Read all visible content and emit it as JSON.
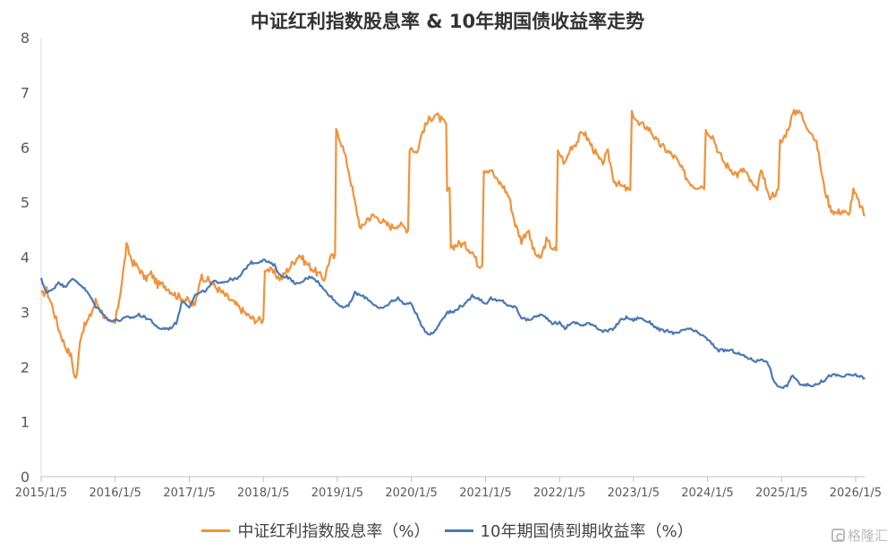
{
  "chart_data": {
    "type": "line",
    "title": "中证红利指数股息率 & 10年期国债收益率走势",
    "xlabel": "",
    "ylabel": "",
    "ylim": [
      0,
      8
    ],
    "yticks": [
      "0",
      "1",
      "2",
      "3",
      "4",
      "5",
      "6",
      "7",
      "8"
    ],
    "xticks": [
      "2015/1/5",
      "2016/1/5",
      "2017/1/5",
      "2018/1/5",
      "2019/1/5",
      "2020/1/5",
      "2021/1/5",
      "2022/1/5",
      "2023/1/5",
      "2024/1/5",
      "2025/1/5",
      "2026/1/5"
    ],
    "xrange": [
      "2015/1/5",
      "2026/2/20"
    ],
    "grid": false,
    "legend_position": "bottom",
    "series": [
      {
        "name": "中证红利指数股息率（%）",
        "color": "#F0923A",
        "points": [
          [
            "2015/1/5",
            3.3
          ],
          [
            "2015/2/1",
            3.4
          ],
          [
            "2015/3/1",
            3.1
          ],
          [
            "2015/4/1",
            2.7
          ],
          [
            "2015/5/1",
            2.4
          ],
          [
            "2015/6/1",
            2.2
          ],
          [
            "2015/6/20",
            1.8
          ],
          [
            "2015/7/1",
            1.85
          ],
          [
            "2015/7/15",
            2.5
          ],
          [
            "2015/8/1",
            2.7
          ],
          [
            "2015/9/1",
            2.9
          ],
          [
            "2015/10/1",
            3.2
          ],
          [
            "2015/11/1",
            3.0
          ],
          [
            "2015/12/1",
            2.8
          ],
          [
            "2016/1/5",
            2.8
          ],
          [
            "2016/2/1",
            3.4
          ],
          [
            "2016/2/20",
            3.9
          ],
          [
            "2016/3/1",
            4.2
          ],
          [
            "2016/4/1",
            3.9
          ],
          [
            "2016/5/1",
            3.8
          ],
          [
            "2016/6/1",
            3.6
          ],
          [
            "2016/7/1",
            3.7
          ],
          [
            "2016/8/1",
            3.5
          ],
          [
            "2016/9/1",
            3.5
          ],
          [
            "2016/10/1",
            3.4
          ],
          [
            "2016/11/1",
            3.3
          ],
          [
            "2016/12/1",
            3.25
          ],
          [
            "2017/1/1",
            3.2
          ],
          [
            "2017/2/1",
            3.1
          ],
          [
            "2017/3/1",
            3.65
          ],
          [
            "2017/4/1",
            3.6
          ],
          [
            "2017/5/1",
            3.5
          ],
          [
            "2017/6/1",
            3.4
          ],
          [
            "2017/7/1",
            3.3
          ],
          [
            "2017/8/1",
            3.2
          ],
          [
            "2017/9/1",
            3.1
          ],
          [
            "2017/10/1",
            3.0
          ],
          [
            "2017/11/1",
            2.9
          ],
          [
            "2017/12/1",
            2.85
          ],
          [
            "2018/1/5",
            2.85
          ],
          [
            "2018/1/20",
            3.8
          ],
          [
            "2018/3/1",
            3.7
          ],
          [
            "2018/4/1",
            3.6
          ],
          [
            "2018/5/1",
            3.75
          ],
          [
            "2018/6/1",
            3.9
          ],
          [
            "2018/7/1",
            4.05
          ],
          [
            "2018/8/1",
            3.9
          ],
          [
            "2018/9/1",
            3.8
          ],
          [
            "2018/10/1",
            3.7
          ],
          [
            "2018/11/1",
            3.6
          ],
          [
            "2018/12/1",
            4.0
          ],
          [
            "2018/12/25",
            4.0
          ],
          [
            "2019/1/5",
            6.3
          ],
          [
            "2019/2/1",
            6.0
          ],
          [
            "2019/3/1",
            5.6
          ],
          [
            "2019/4/1",
            5.0
          ],
          [
            "2019/5/1",
            4.5
          ],
          [
            "2019/6/1",
            4.7
          ],
          [
            "2019/7/1",
            4.75
          ],
          [
            "2019/8/1",
            4.7
          ],
          [
            "2019/9/1",
            4.6
          ],
          [
            "2019/10/1",
            4.55
          ],
          [
            "2019/11/1",
            4.6
          ],
          [
            "2019/12/20",
            4.5
          ],
          [
            "2020/1/5",
            6.0
          ],
          [
            "2020/2/1",
            5.9
          ],
          [
            "2020/3/1",
            6.3
          ],
          [
            "2020/4/1",
            6.5
          ],
          [
            "2020/5/1",
            6.6
          ],
          [
            "2020/6/1",
            6.5
          ],
          [
            "2020/6/25",
            6.4
          ],
          [
            "2020/7/5",
            5.2
          ],
          [
            "2020/8/1",
            4.2
          ],
          [
            "2020/9/1",
            4.25
          ],
          [
            "2020/10/1",
            4.2
          ],
          [
            "2020/11/1",
            4.1
          ],
          [
            "2020/12/1",
            3.85
          ],
          [
            "2020/12/20",
            3.9
          ],
          [
            "2021/1/5",
            5.6
          ],
          [
            "2021/2/1",
            5.6
          ],
          [
            "2021/3/1",
            5.4
          ],
          [
            "2021/4/1",
            5.3
          ],
          [
            "2021/5/1",
            5.1
          ],
          [
            "2021/6/1",
            4.6
          ],
          [
            "2021/7/1",
            4.3
          ],
          [
            "2021/8/1",
            4.5
          ],
          [
            "2021/9/1",
            4.1
          ],
          [
            "2021/10/1",
            3.95
          ],
          [
            "2021/11/1",
            4.3
          ],
          [
            "2021/12/20",
            4.1
          ],
          [
            "2022/1/5",
            5.9
          ],
          [
            "2022/2/1",
            5.7
          ],
          [
            "2022/3/1",
            6.0
          ],
          [
            "2022/4/1",
            6.1
          ],
          [
            "2022/5/1",
            6.3
          ],
          [
            "2022/6/1",
            6.1
          ],
          [
            "2022/7/1",
            5.9
          ],
          [
            "2022/8/1",
            5.7
          ],
          [
            "2022/9/1",
            5.9
          ],
          [
            "2022/10/1",
            5.4
          ],
          [
            "2022/11/1",
            5.3
          ],
          [
            "2022/12/20",
            5.2
          ],
          [
            "2023/1/5",
            6.6
          ],
          [
            "2023/2/1",
            6.4
          ],
          [
            "2023/3/1",
            6.4
          ],
          [
            "2023/4/1",
            6.3
          ],
          [
            "2023/5/1",
            6.1
          ],
          [
            "2023/6/1",
            6.0
          ],
          [
            "2023/7/1",
            5.9
          ],
          [
            "2023/8/1",
            5.8
          ],
          [
            "2023/9/1",
            5.6
          ],
          [
            "2023/10/1",
            5.4
          ],
          [
            "2023/11/1",
            5.3
          ],
          [
            "2023/12/20",
            5.3
          ],
          [
            "2024/1/5",
            6.3
          ],
          [
            "2024/2/1",
            6.2
          ],
          [
            "2024/3/1",
            5.9
          ],
          [
            "2024/4/1",
            5.7
          ],
          [
            "2024/5/1",
            5.6
          ],
          [
            "2024/6/1",
            5.5
          ],
          [
            "2024/7/1",
            5.6
          ],
          [
            "2024/8/1",
            5.4
          ],
          [
            "2024/9/1",
            5.2
          ],
          [
            "2024/10/1",
            5.6
          ],
          [
            "2024/11/1",
            5.1
          ],
          [
            "2024/12/20",
            5.2
          ],
          [
            "2025/1/5",
            6.1
          ],
          [
            "2025/2/1",
            6.3
          ],
          [
            "2025/3/1",
            6.6
          ],
          [
            "2025/4/1",
            6.7
          ],
          [
            "2025/5/1",
            6.4
          ],
          [
            "2025/6/1",
            6.3
          ],
          [
            "2025/7/1",
            6.0
          ],
          [
            "2025/8/1",
            5.3
          ],
          [
            "2025/9/1",
            4.9
          ],
          [
            "2025/10/1",
            4.8
          ],
          [
            "2025/11/1",
            4.85
          ],
          [
            "2025/12/1",
            4.75
          ],
          [
            "2025/12/25",
            5.2
          ],
          [
            "2026/1/20",
            5.0
          ],
          [
            "2026/2/20",
            4.75
          ]
        ]
      },
      {
        "name": "10年期国债到期收益率（%）",
        "color": "#4A78B5",
        "points": [
          [
            "2015/1/5",
            3.6
          ],
          [
            "2015/2/1",
            3.35
          ],
          [
            "2015/3/1",
            3.4
          ],
          [
            "2015/4/1",
            3.55
          ],
          [
            "2015/5/1",
            3.45
          ],
          [
            "2015/6/1",
            3.6
          ],
          [
            "2015/7/1",
            3.55
          ],
          [
            "2015/8/1",
            3.45
          ],
          [
            "2015/9/1",
            3.3
          ],
          [
            "2015/10/1",
            3.1
          ],
          [
            "2015/11/1",
            3.0
          ],
          [
            "2015/12/1",
            2.85
          ],
          [
            "2016/1/5",
            2.85
          ],
          [
            "2016/2/1",
            2.85
          ],
          [
            "2016/3/1",
            2.9
          ],
          [
            "2016/4/1",
            2.9
          ],
          [
            "2016/5/1",
            2.95
          ],
          [
            "2016/6/1",
            2.9
          ],
          [
            "2016/7/1",
            2.85
          ],
          [
            "2016/8/1",
            2.7
          ],
          [
            "2016/9/1",
            2.7
          ],
          [
            "2016/10/1",
            2.7
          ],
          [
            "2016/11/1",
            2.8
          ],
          [
            "2016/12/1",
            3.2
          ],
          [
            "2017/1/5",
            3.1
          ],
          [
            "2017/2/1",
            3.3
          ],
          [
            "2017/3/1",
            3.35
          ],
          [
            "2017/4/1",
            3.4
          ],
          [
            "2017/5/1",
            3.55
          ],
          [
            "2017/6/1",
            3.55
          ],
          [
            "2017/7/1",
            3.55
          ],
          [
            "2017/8/1",
            3.6
          ],
          [
            "2017/9/1",
            3.6
          ],
          [
            "2017/10/1",
            3.75
          ],
          [
            "2017/11/1",
            3.9
          ],
          [
            "2017/12/1",
            3.9
          ],
          [
            "2018/1/5",
            3.95
          ],
          [
            "2018/2/1",
            3.9
          ],
          [
            "2018/3/1",
            3.85
          ],
          [
            "2018/4/1",
            3.65
          ],
          [
            "2018/5/1",
            3.65
          ],
          [
            "2018/6/1",
            3.55
          ],
          [
            "2018/7/1",
            3.5
          ],
          [
            "2018/8/1",
            3.6
          ],
          [
            "2018/9/1",
            3.65
          ],
          [
            "2018/10/1",
            3.55
          ],
          [
            "2018/11/1",
            3.4
          ],
          [
            "2018/12/1",
            3.3
          ],
          [
            "2019/1/5",
            3.15
          ],
          [
            "2019/2/1",
            3.1
          ],
          [
            "2019/3/1",
            3.1
          ],
          [
            "2019/4/1",
            3.35
          ],
          [
            "2019/5/1",
            3.3
          ],
          [
            "2019/6/1",
            3.25
          ],
          [
            "2019/7/1",
            3.15
          ],
          [
            "2019/8/1",
            3.05
          ],
          [
            "2019/9/1",
            3.1
          ],
          [
            "2019/10/1",
            3.2
          ],
          [
            "2019/11/1",
            3.25
          ],
          [
            "2019/12/1",
            3.15
          ],
          [
            "2020/1/5",
            3.15
          ],
          [
            "2020/2/1",
            2.95
          ],
          [
            "2020/3/1",
            2.7
          ],
          [
            "2020/4/1",
            2.6
          ],
          [
            "2020/5/1",
            2.65
          ],
          [
            "2020/6/1",
            2.85
          ],
          [
            "2020/7/1",
            3.0
          ],
          [
            "2020/8/1",
            3.0
          ],
          [
            "2020/9/1",
            3.1
          ],
          [
            "2020/10/1",
            3.15
          ],
          [
            "2020/11/1",
            3.3
          ],
          [
            "2020/12/1",
            3.25
          ],
          [
            "2021/1/5",
            3.15
          ],
          [
            "2021/2/1",
            3.25
          ],
          [
            "2021/3/1",
            3.2
          ],
          [
            "2021/4/1",
            3.2
          ],
          [
            "2021/5/1",
            3.1
          ],
          [
            "2021/6/1",
            3.1
          ],
          [
            "2021/7/1",
            2.9
          ],
          [
            "2021/8/1",
            2.85
          ],
          [
            "2021/9/1",
            2.9
          ],
          [
            "2021/10/1",
            2.95
          ],
          [
            "2021/11/1",
            2.9
          ],
          [
            "2021/12/1",
            2.8
          ],
          [
            "2022/1/5",
            2.8
          ],
          [
            "2022/2/1",
            2.7
          ],
          [
            "2022/3/1",
            2.8
          ],
          [
            "2022/4/1",
            2.8
          ],
          [
            "2022/5/1",
            2.75
          ],
          [
            "2022/6/1",
            2.8
          ],
          [
            "2022/7/1",
            2.75
          ],
          [
            "2022/8/1",
            2.65
          ],
          [
            "2022/9/1",
            2.65
          ],
          [
            "2022/10/1",
            2.7
          ],
          [
            "2022/11/1",
            2.85
          ],
          [
            "2022/12/1",
            2.9
          ],
          [
            "2023/1/5",
            2.85
          ],
          [
            "2023/2/1",
            2.9
          ],
          [
            "2023/3/1",
            2.85
          ],
          [
            "2023/4/1",
            2.8
          ],
          [
            "2023/5/1",
            2.7
          ],
          [
            "2023/6/1",
            2.65
          ],
          [
            "2023/7/1",
            2.65
          ],
          [
            "2023/8/1",
            2.6
          ],
          [
            "2023/9/1",
            2.65
          ],
          [
            "2023/10/1",
            2.7
          ],
          [
            "2023/11/1",
            2.65
          ],
          [
            "2023/12/1",
            2.6
          ],
          [
            "2024/1/5",
            2.5
          ],
          [
            "2024/2/1",
            2.4
          ],
          [
            "2024/3/1",
            2.3
          ],
          [
            "2024/4/1",
            2.3
          ],
          [
            "2024/5/1",
            2.3
          ],
          [
            "2024/6/1",
            2.25
          ],
          [
            "2024/7/1",
            2.2
          ],
          [
            "2024/8/1",
            2.15
          ],
          [
            "2024/9/1",
            2.1
          ],
          [
            "2024/10/1",
            2.15
          ],
          [
            "2024/11/1",
            2.05
          ],
          [
            "2024/12/1",
            1.7
          ],
          [
            "2025/1/5",
            1.62
          ],
          [
            "2025/2/1",
            1.65
          ],
          [
            "2025/3/1",
            1.85
          ],
          [
            "2025/4/1",
            1.7
          ],
          [
            "2025/5/1",
            1.68
          ],
          [
            "2025/6/1",
            1.65
          ],
          [
            "2025/7/1",
            1.7
          ],
          [
            "2025/8/1",
            1.75
          ],
          [
            "2025/9/1",
            1.85
          ],
          [
            "2025/10/1",
            1.85
          ],
          [
            "2025/11/1",
            1.82
          ],
          [
            "2025/12/1",
            1.85
          ],
          [
            "2026/1/5",
            1.85
          ],
          [
            "2026/2/20",
            1.8
          ]
        ]
      }
    ]
  },
  "watermark": {
    "text": "格隆汇",
    "icon": "gelonghui-logo-icon"
  }
}
